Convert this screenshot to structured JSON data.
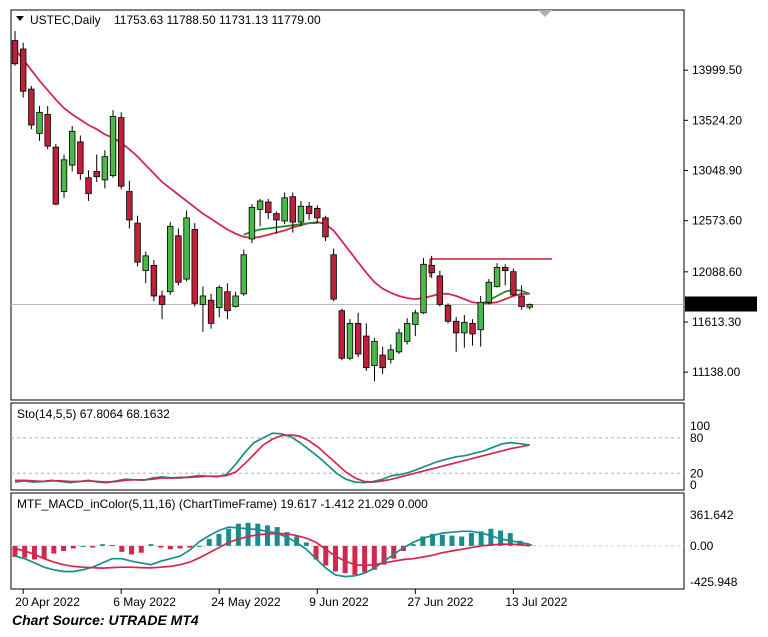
{
  "chart_data": [
    {
      "type": "candlestick",
      "symbol_header": "USTEC,Daily",
      "ohlc_header": "11753.63 11788.50 11731.13 11779.00",
      "price_ticks": [
        "13999.50",
        "13524.20",
        "13048.90",
        "12573.60",
        "12088.60",
        "11613.30",
        "11138.00"
      ],
      "price_tick_values": [
        13999.5,
        13524.2,
        13048.9,
        12573.6,
        12088.6,
        11613.3,
        11138.0
      ],
      "current_price_label": "11779.00",
      "current_price": 11779.0,
      "ylim": [
        10950,
        14380
      ],
      "x_labels": [
        "20 Apr 2022",
        "6 May 2022",
        "24 May 2022",
        "9 Jun 2022",
        "27 Jun 2022",
        "13 Jul 2022"
      ],
      "x_label_index": [
        1,
        13,
        25,
        37,
        49,
        61
      ],
      "resistance_level": 12210,
      "candles": [
        {
          "o": 14280,
          "h": 14370,
          "l": 14040,
          "c": 14060
        },
        {
          "o": 14200,
          "h": 14260,
          "l": 13740,
          "c": 13800
        },
        {
          "o": 13820,
          "h": 13850,
          "l": 13440,
          "c": 13480
        },
        {
          "o": 13400,
          "h": 13660,
          "l": 13330,
          "c": 13600
        },
        {
          "o": 13580,
          "h": 13660,
          "l": 13250,
          "c": 13280
        },
        {
          "o": 13270,
          "h": 13300,
          "l": 12720,
          "c": 12730
        },
        {
          "o": 12850,
          "h": 13200,
          "l": 12790,
          "c": 13150
        },
        {
          "o": 13100,
          "h": 13470,
          "l": 13040,
          "c": 13420
        },
        {
          "o": 13320,
          "h": 13380,
          "l": 12960,
          "c": 13020
        },
        {
          "o": 12980,
          "h": 13050,
          "l": 12760,
          "c": 12830
        },
        {
          "o": 13040,
          "h": 13200,
          "l": 12940,
          "c": 12990
        },
        {
          "o": 12960,
          "h": 13240,
          "l": 12880,
          "c": 13180
        },
        {
          "o": 13000,
          "h": 13620,
          "l": 12980,
          "c": 13560
        },
        {
          "o": 13550,
          "h": 13600,
          "l": 12870,
          "c": 12900
        },
        {
          "o": 12850,
          "h": 12950,
          "l": 12500,
          "c": 12580
        },
        {
          "o": 12550,
          "h": 12620,
          "l": 12140,
          "c": 12180
        },
        {
          "o": 12100,
          "h": 12280,
          "l": 11980,
          "c": 12240
        },
        {
          "o": 12150,
          "h": 12200,
          "l": 11810,
          "c": 11860
        },
        {
          "o": 11860,
          "h": 11910,
          "l": 11640,
          "c": 11780
        },
        {
          "o": 11900,
          "h": 12560,
          "l": 11870,
          "c": 12520
        },
        {
          "o": 12430,
          "h": 12500,
          "l": 11960,
          "c": 11990
        },
        {
          "o": 12020,
          "h": 12670,
          "l": 12000,
          "c": 12600
        },
        {
          "o": 12490,
          "h": 12550,
          "l": 11760,
          "c": 11790
        },
        {
          "o": 11780,
          "h": 11950,
          "l": 11520,
          "c": 11860
        },
        {
          "o": 11820,
          "h": 11880,
          "l": 11550,
          "c": 11600
        },
        {
          "o": 11750,
          "h": 11960,
          "l": 11660,
          "c": 11940
        },
        {
          "o": 11900,
          "h": 11980,
          "l": 11640,
          "c": 11720
        },
        {
          "o": 11760,
          "h": 11900,
          "l": 11750,
          "c": 11860
        },
        {
          "o": 11880,
          "h": 12300,
          "l": 11860,
          "c": 12250
        },
        {
          "o": 12400,
          "h": 12730,
          "l": 12360,
          "c": 12700
        },
        {
          "o": 12680,
          "h": 12780,
          "l": 12520,
          "c": 12760
        },
        {
          "o": 12750,
          "h": 12780,
          "l": 12590,
          "c": 12650
        },
        {
          "o": 12640,
          "h": 12660,
          "l": 12450,
          "c": 12580
        },
        {
          "o": 12570,
          "h": 12840,
          "l": 12540,
          "c": 12790
        },
        {
          "o": 12800,
          "h": 12840,
          "l": 12460,
          "c": 12560
        },
        {
          "o": 12560,
          "h": 12760,
          "l": 12520,
          "c": 12710
        },
        {
          "o": 12710,
          "h": 12750,
          "l": 12580,
          "c": 12640
        },
        {
          "o": 12690,
          "h": 12720,
          "l": 12550,
          "c": 12600
        },
        {
          "o": 12600,
          "h": 12620,
          "l": 12380,
          "c": 12420
        },
        {
          "o": 12250,
          "h": 12310,
          "l": 11810,
          "c": 11830
        },
        {
          "o": 11720,
          "h": 11740,
          "l": 11250,
          "c": 11270
        },
        {
          "o": 11270,
          "h": 11640,
          "l": 11250,
          "c": 11600
        },
        {
          "o": 11600,
          "h": 11700,
          "l": 11280,
          "c": 11310
        },
        {
          "o": 11480,
          "h": 11600,
          "l": 11150,
          "c": 11180
        },
        {
          "o": 11200,
          "h": 11460,
          "l": 11050,
          "c": 11430
        },
        {
          "o": 11300,
          "h": 11380,
          "l": 11120,
          "c": 11180
        },
        {
          "o": 11260,
          "h": 11400,
          "l": 11220,
          "c": 11350
        },
        {
          "o": 11330,
          "h": 11550,
          "l": 11310,
          "c": 11510
        },
        {
          "o": 11430,
          "h": 11650,
          "l": 11400,
          "c": 11600
        },
        {
          "o": 11590,
          "h": 11730,
          "l": 11480,
          "c": 11700
        },
        {
          "o": 11700,
          "h": 12220,
          "l": 11690,
          "c": 12160
        },
        {
          "o": 12150,
          "h": 12240,
          "l": 12030,
          "c": 12080
        },
        {
          "o": 12050,
          "h": 12100,
          "l": 11760,
          "c": 11780
        },
        {
          "o": 11770,
          "h": 11790,
          "l": 11600,
          "c": 11620
        },
        {
          "o": 11620,
          "h": 11660,
          "l": 11330,
          "c": 11510
        },
        {
          "o": 11510,
          "h": 11680,
          "l": 11370,
          "c": 11610
        },
        {
          "o": 11600,
          "h": 11640,
          "l": 11390,
          "c": 11500
        },
        {
          "o": 11540,
          "h": 11860,
          "l": 11380,
          "c": 11800
        },
        {
          "o": 11800,
          "h": 12020,
          "l": 11780,
          "c": 11990
        },
        {
          "o": 11950,
          "h": 12170,
          "l": 11940,
          "c": 12130
        },
        {
          "o": 12130,
          "h": 12160,
          "l": 11960,
          "c": 12100
        },
        {
          "o": 12090,
          "h": 12120,
          "l": 11860,
          "c": 11870
        },
        {
          "o": 11860,
          "h": 11960,
          "l": 11730,
          "c": 11760
        },
        {
          "o": 11753.63,
          "h": 11788.5,
          "l": 11731.13,
          "c": 11779.0
        }
      ],
      "ma_red": [
        14200,
        14100,
        14000,
        13900,
        13810,
        13720,
        13640,
        13580,
        13530,
        13480,
        13440,
        13390,
        13360,
        13310,
        13250,
        13180,
        13100,
        13020,
        12940,
        12880,
        12820,
        12760,
        12700,
        12640,
        12590,
        12540,
        12490,
        12450,
        12420,
        12410,
        12420,
        12440,
        12460,
        12480,
        12510,
        12530,
        12550,
        12560,
        12540,
        12480,
        12380,
        12280,
        12180,
        12080,
        11990,
        11930,
        11890,
        11860,
        11840,
        11830,
        11840,
        11860,
        11880,
        11880,
        11860,
        11830,
        11800,
        11790,
        11790,
        11800,
        11830,
        11860,
        11880,
        11880
      ],
      "ma_green_start": 28,
      "ma_green": [
        12440,
        12470,
        12490,
        12500,
        12510,
        12520,
        12530,
        12540,
        12550,
        12550
      ],
      "ma_green2_start": 57,
      "ma_green2": [
        11780,
        11820,
        11860,
        11900,
        11920,
        11910,
        11880
      ]
    },
    {
      "type": "line",
      "header": "Sto(14,5,5) 67.8064 68.1632",
      "ticks": [
        "100",
        "80",
        "20",
        "0"
      ],
      "tick_values": [
        100,
        80,
        20,
        0
      ],
      "levels": [
        80,
        20
      ],
      "ylim": [
        -5,
        107
      ],
      "series": [
        {
          "color": "#1a8c8c",
          "values": [
            5,
            7,
            5,
            6,
            8,
            6,
            4,
            6,
            8,
            5,
            4,
            7,
            10,
            9,
            8,
            12,
            14,
            12,
            12,
            14,
            16,
            15,
            14,
            18,
            35,
            55,
            72,
            80,
            88,
            87,
            82,
            72,
            60,
            48,
            34,
            20,
            10,
            5,
            4,
            6,
            10,
            16,
            18,
            22,
            28,
            34,
            40,
            44,
            48,
            50,
            54,
            58,
            64,
            70,
            72,
            70,
            67.8
          ]
        },
        {
          "color": "#d2284e",
          "values": [
            8,
            8,
            7,
            6,
            7,
            7,
            6,
            6,
            7,
            6,
            5,
            6,
            8,
            9,
            9,
            10,
            12,
            12,
            13,
            13,
            14,
            15,
            15,
            16,
            22,
            36,
            52,
            68,
            78,
            84,
            85,
            83,
            75,
            64,
            50,
            36,
            22,
            12,
            6,
            5,
            7,
            10,
            14,
            18,
            22,
            26,
            30,
            34,
            38,
            42,
            46,
            50,
            54,
            58,
            62,
            65,
            68.2
          ]
        }
      ]
    },
    {
      "type": "bar",
      "header": "MTF_MACD_inColor(5,11,16) (ChartTimeFrame) 19.617 -1.412 21.029 0.000",
      "ticks": [
        "361.642",
        "0.00",
        "-425.948"
      ],
      "tick_values": [
        361.642,
        0,
        -425.948
      ],
      "ylim": [
        -470,
        420
      ],
      "histogram": [
        -130,
        -140,
        -160,
        -150,
        -90,
        -60,
        -30,
        0,
        -20,
        20,
        10,
        -70,
        -100,
        -80,
        20,
        -20,
        -40,
        -30,
        -20,
        0,
        80,
        140,
        200,
        260,
        270,
        260,
        240,
        220,
        160,
        110,
        40,
        -160,
        -230,
        -300,
        -320,
        -340,
        -310,
        -280,
        -220,
        -150,
        -60,
        20,
        110,
        140,
        130,
        120,
        110,
        150,
        170,
        200,
        180,
        150,
        60,
        20
      ],
      "lines": [
        {
          "color": "#1a8c8c",
          "values": [
            -120,
            -150,
            -200,
            -250,
            -280,
            -300,
            -300,
            -280,
            -250,
            -200,
            -150,
            -150,
            -180,
            -200,
            -220,
            -180,
            -150,
            -120,
            -50,
            50,
            120,
            180,
            220,
            210,
            200,
            190,
            170,
            150,
            100,
            40,
            -40,
            -150,
            -260,
            -340,
            -360,
            -350,
            -320,
            -260,
            -180,
            -100,
            -20,
            40,
            90,
            120,
            150,
            160,
            170,
            170,
            150,
            120,
            80,
            60,
            40,
            20
          ]
        },
        {
          "color": "#d2284e",
          "values": [
            -30,
            -60,
            -100,
            -150,
            -190,
            -220,
            -240,
            -250,
            -255,
            -260,
            -255,
            -250,
            -250,
            -255,
            -258,
            -250,
            -240,
            -220,
            -190,
            -140,
            -80,
            -20,
            40,
            80,
            110,
            130,
            140,
            145,
            140,
            120,
            90,
            40,
            -40,
            -120,
            -180,
            -220,
            -230,
            -220,
            -200,
            -180,
            -160,
            -150,
            -130,
            -110,
            -80,
            -60,
            -40,
            -20,
            0,
            10,
            20,
            20,
            15,
            0
          ]
        }
      ]
    }
  ],
  "source_note": "Chart Source: UTRADE MT4"
}
